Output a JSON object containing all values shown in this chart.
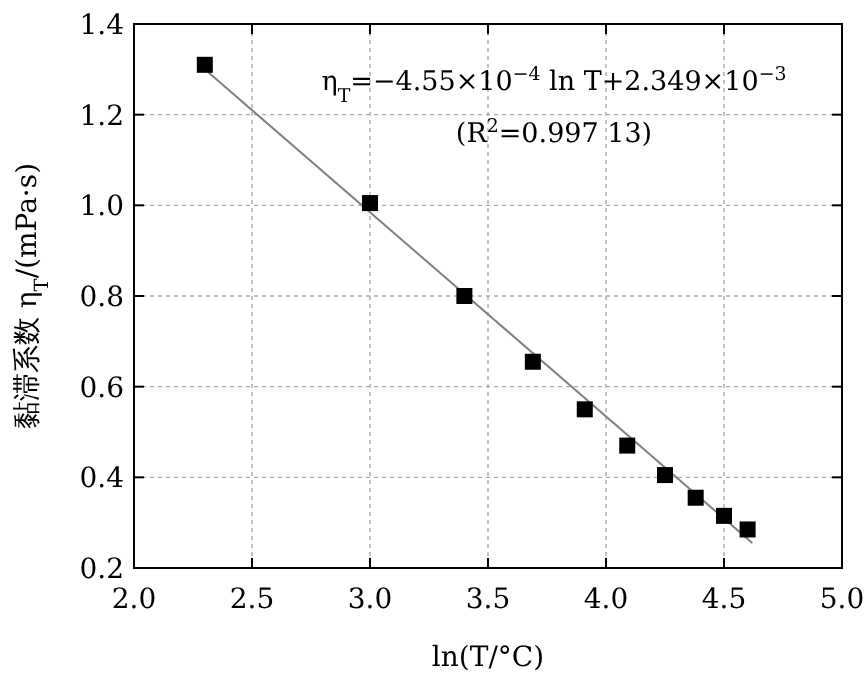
{
  "chart_data": {
    "type": "scatter",
    "xlabel": "ln(T/°C)",
    "ylabel": "黏滞系数 η$_{T}$/(mPa·s)",
    "annotations": [
      "η$_{T}$=−4.55×10$^{−4}$ ln T+2.349×10$^{−3}$",
      "(R$^{2}$=0.997 13)"
    ],
    "xlim": [
      2.0,
      5.0
    ],
    "ylim": [
      0.2,
      1.4
    ],
    "xticks": [
      {
        "value": 2.0,
        "label": "2.0"
      },
      {
        "value": 2.5,
        "label": "2.5"
      },
      {
        "value": 3.0,
        "label": "3.0"
      },
      {
        "value": 3.5,
        "label": "3.5"
      },
      {
        "value": 4.0,
        "label": "4.0"
      },
      {
        "value": 4.5,
        "label": "4.5"
      },
      {
        "value": 5.0,
        "label": "5.0"
      }
    ],
    "yticks": [
      0.2,
      0.4,
      0.6,
      0.8,
      {
        "value": 1.0,
        "label": "1.0"
      },
      1.2,
      1.4
    ],
    "grid": true,
    "series": [
      {
        "marker": "square",
        "color": "#000000",
        "x": [
          2.3,
          3.0,
          3.4,
          3.69,
          3.91,
          4.09,
          4.25,
          4.38,
          4.5,
          4.6
        ],
        "values": [
          1.31,
          1.005,
          0.8,
          0.655,
          0.55,
          0.47,
          0.405,
          0.355,
          0.315,
          0.285
        ]
      },
      {
        "type": "line",
        "marker": "none",
        "color": "#808080",
        "x": [
          2.3,
          4.62
        ],
        "values": [
          1.3,
          0.255
        ]
      }
    ]
  }
}
